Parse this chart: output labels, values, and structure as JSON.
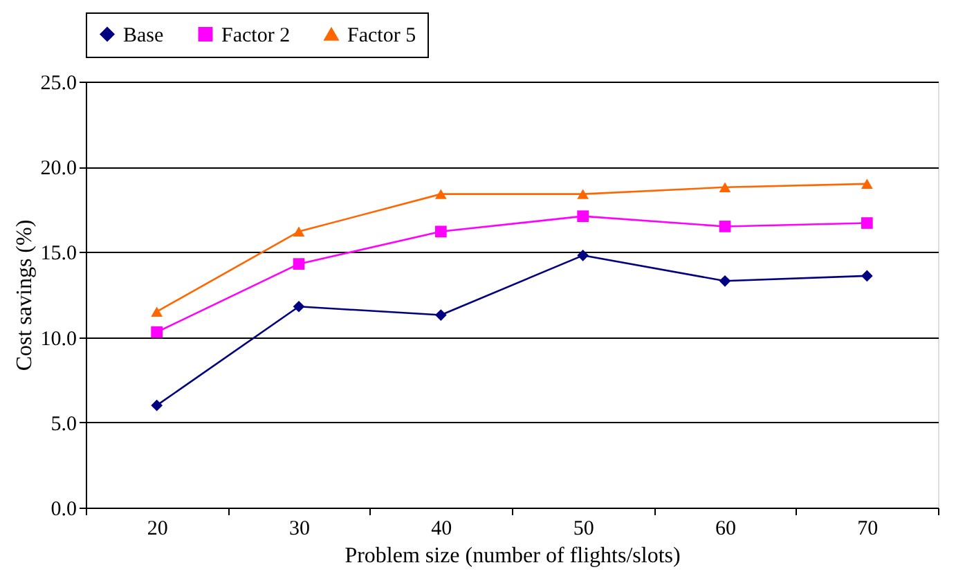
{
  "chart_data": {
    "type": "line",
    "xlabel": "Problem size (number of flights/slots)",
    "ylabel": "Cost savings (%)",
    "categories": [
      "20",
      "30",
      "40",
      "50",
      "60",
      "70"
    ],
    "series": [
      {
        "name": "Base",
        "color": "#000080",
        "marker": "diamond",
        "values": [
          6.0,
          11.8,
          11.3,
          14.8,
          13.3,
          13.6
        ]
      },
      {
        "name": "Factor 2",
        "color": "#ff00ff",
        "marker": "square",
        "values": [
          10.3,
          14.3,
          16.2,
          17.1,
          16.5,
          16.7
        ]
      },
      {
        "name": "Factor 5",
        "color": "#ff6600",
        "marker": "triangle",
        "values": [
          11.5,
          16.2,
          18.4,
          18.4,
          18.8,
          19.0
        ]
      }
    ],
    "ylim": [
      0,
      25
    ],
    "yticks": [
      {
        "value": 0,
        "label": "0.0"
      },
      {
        "value": 5,
        "label": "5.0"
      },
      {
        "value": 10,
        "label": "10.0"
      },
      {
        "value": 15,
        "label": "15.0"
      },
      {
        "value": 20,
        "label": "20.0"
      },
      {
        "value": 25,
        "label": "25.0"
      }
    ],
    "grid": "y",
    "legend": "top",
    "line_style": "solid"
  }
}
